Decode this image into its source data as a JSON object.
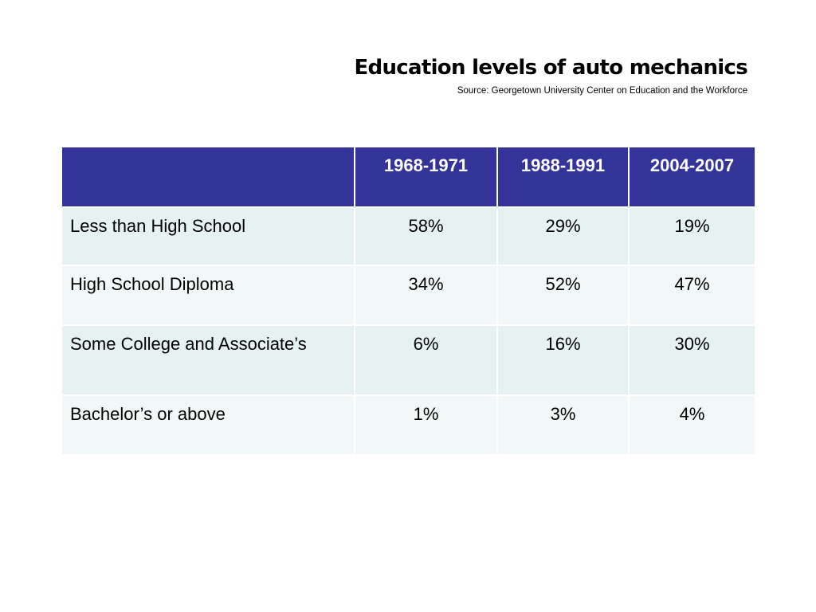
{
  "header": {
    "title": "Education levels of auto mechanics",
    "source": "Source: Georgetown University Center on Education and the Workforce"
  },
  "colors": {
    "header_fill": "#333399",
    "row_fill_odd": "#e6f1f2",
    "row_fill_even": "#f2f7f8",
    "header_text": "#ffffff"
  },
  "chart_data": {
    "type": "table",
    "title": "Education levels of auto mechanics",
    "subtitle": "Source: Georgetown University Center on Education and the Workforce",
    "columns": [
      "",
      "1968-1971",
      "1988-1991",
      "2004-2007"
    ],
    "rows": [
      {
        "label": "Less than High School",
        "values": [
          "58%",
          "29%",
          "19%"
        ]
      },
      {
        "label": "High School Diploma",
        "values": [
          "34%",
          "52%",
          "47%"
        ]
      },
      {
        "label": "Some College and Associate’s",
        "values": [
          "6%",
          "16%",
          "30%"
        ]
      },
      {
        "label": "Bachelor’s  or above",
        "values": [
          "1%",
          "3%",
          "4%"
        ]
      }
    ]
  }
}
